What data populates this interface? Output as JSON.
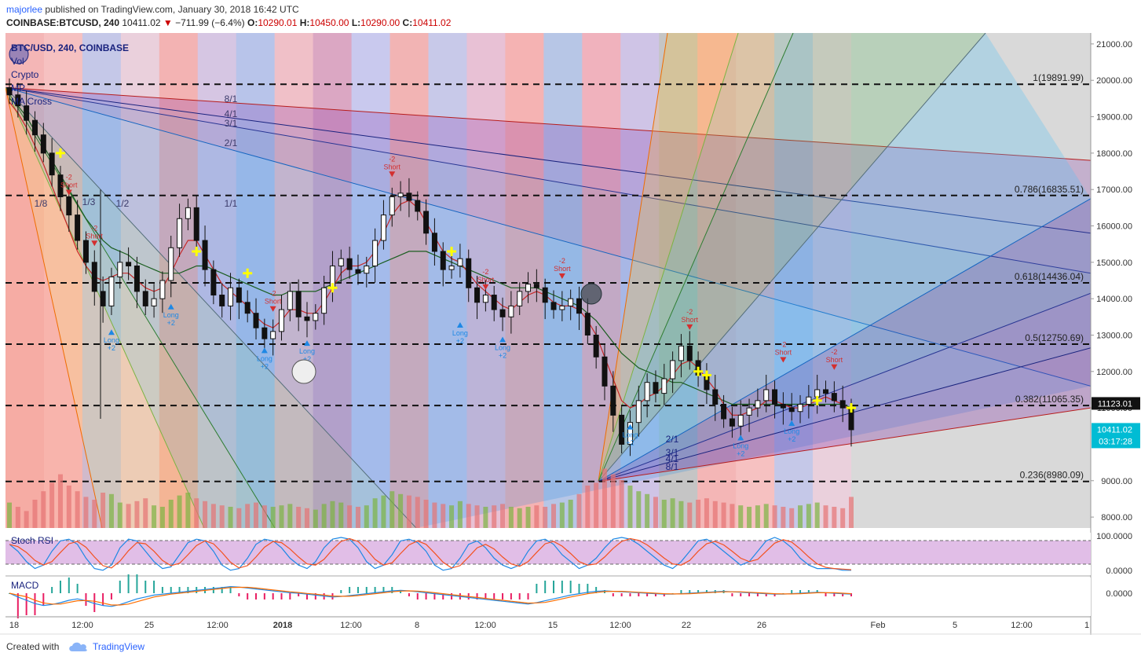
{
  "header": {
    "author": "majorlee",
    "published": "published on TradingView.com, January 30, 2018 16:42 UTC",
    "symbol": "COINBASE:BTCUSD, 240",
    "last": "10411.02",
    "change": "−711.99 (−6.4%)",
    "o_label": "O:",
    "o_value": "10290.01",
    "h_label": "H:",
    "h_value": "10450.00",
    "l_label": "L:",
    "l_value": "10290.00",
    "c_label": "C:",
    "c_value": "10411.02"
  },
  "legend": {
    "title": "BTC/USD, 240, COINBASE",
    "items": [
      "Vol",
      "Crypto",
      "MP",
      "MA Cross"
    ]
  },
  "colors": {
    "bull": "#2e7d32",
    "bear": "#c62828",
    "long_arrow": "#1e88e5",
    "short_arrow": "#d32f2f",
    "cross": "#ffff00",
    "axis_text": "#333333",
    "panel_bg": "#e1bee7"
  },
  "chart_data": {
    "type": "candlestick",
    "xaxis_labels": [
      "18",
      "12:00",
      "25",
      "12:00",
      "2018",
      "12:00",
      "8",
      "12:00",
      "15",
      "12:00",
      "22",
      "26",
      "Feb",
      "5",
      "12:00",
      "1"
    ],
    "yaxis_labels": [
      "21000.00",
      "20000.00",
      "19000.00",
      "18000.00",
      "17000.00",
      "16000.00",
      "15000.00",
      "14000.00",
      "13000.00",
      "12000.00",
      "11000.00",
      "9000.00",
      "8000.00"
    ],
    "ylim": [
      7700,
      21300
    ],
    "price_labels": {
      "last_close": "11123.01",
      "current": "10411.02",
      "countdown": "03:17:28"
    },
    "fib_levels": [
      {
        "label": "1(19891.99)",
        "value": 19891.99
      },
      {
        "label": "0.786(16835.51)",
        "value": 16835.51
      },
      {
        "label": "0.618(14436.04)",
        "value": 14436.04
      },
      {
        "label": "0.5(12750.69)",
        "value": 12750.69
      },
      {
        "label": "0.382(11065.35)",
        "value": 11065.35
      },
      {
        "label": "0.236(8980.09)",
        "value": 8980.09
      }
    ],
    "gann_fan_top_labels": [
      "8/1",
      "4/1",
      "3/1",
      "2/1",
      "1/1",
      "1/2",
      "1/3",
      "1/8"
    ],
    "gann_fan_bottom_labels": [
      "2/1",
      "3/1",
      "4/1",
      "8/1"
    ],
    "signals": {
      "short_label": "Short",
      "short_value": "-2",
      "long_label": "Long",
      "long_value": "+2"
    },
    "close_path": [
      19600,
      19300,
      18900,
      18500,
      18000,
      17400,
      16800,
      16300,
      15600,
      15000,
      14200,
      13800,
      14600,
      15000,
      14900,
      14200,
      13800,
      14000,
      14500,
      15400,
      16200,
      16500,
      15600,
      14800,
      14100,
      13800,
      14300,
      13900,
      13600,
      13200,
      12900,
      13100,
      13700,
      14200,
      13500,
      13400,
      13600,
      14300,
      14900,
      15100,
      14800,
      14700,
      14900,
      15600,
      16300,
      16800,
      16900,
      16700,
      16400,
      15800,
      15300,
      14800,
      14900,
      15100,
      14300,
      13900,
      14100,
      13700,
      13500,
      13800,
      14200,
      14400,
      14300,
      13900,
      13700,
      13800,
      14000,
      13600,
      13000,
      12400,
      11600,
      10800,
      10000,
      10600,
      11200,
      11700,
      11400,
      11800,
      12300,
      12700,
      12300,
      11900,
      11500,
      11100,
      10700,
      10500,
      10800,
      11000,
      11200,
      11500,
      11100,
      11000,
      10900,
      11100,
      11300,
      11500,
      11400,
      11200,
      11000,
      10400
    ],
    "volume_path": [
      180,
      150,
      120,
      200,
      260,
      320,
      380,
      300,
      260,
      220,
      200,
      250,
      240,
      180,
      170,
      190,
      210,
      160,
      150,
      200,
      230,
      250,
      210,
      190,
      170,
      160,
      150,
      140,
      170,
      180,
      160,
      150,
      160,
      170,
      150,
      140,
      130,
      170,
      190,
      180,
      160,
      150,
      160,
      210,
      230,
      260,
      240,
      230,
      220,
      200,
      180,
      170,
      160,
      190,
      170,
      160,
      150,
      160,
      170,
      150,
      140,
      150,
      160,
      150,
      170,
      180,
      200,
      240,
      300,
      320,
      420,
      380,
      340,
      300,
      260,
      240,
      220,
      200,
      210,
      190,
      180,
      200,
      210,
      190,
      180,
      170,
      160,
      150,
      160,
      170,
      160,
      150,
      140,
      160,
      170,
      180,
      160,
      150,
      140,
      220
    ],
    "stoch_rsi_k": [
      80,
      60,
      30,
      10,
      20,
      60,
      90,
      95,
      80,
      40,
      10,
      5,
      20,
      70,
      95,
      90,
      60,
      30,
      10,
      15,
      50,
      85,
      95,
      90,
      60,
      20,
      5,
      10,
      40,
      80,
      95,
      90,
      70,
      40,
      20,
      10,
      30,
      70,
      95,
      100,
      95,
      70,
      30,
      10,
      20,
      50,
      90,
      95,
      85,
      60,
      20,
      5,
      10,
      40,
      80,
      90,
      70,
      40,
      20,
      10,
      20,
      60,
      90,
      95,
      80,
      50,
      30,
      10,
      20,
      40,
      70,
      95,
      100,
      95,
      80,
      60,
      40,
      20,
      10,
      30,
      60,
      90,
      95,
      80,
      60,
      40,
      20,
      30,
      60,
      90,
      100,
      90,
      70,
      40,
      20,
      10,
      10,
      10,
      5,
      5
    ],
    "macd_line": [
      0,
      -80,
      -150,
      -220,
      -260,
      -240,
      -200,
      -150,
      -120,
      -160,
      -220,
      -260,
      -280,
      -240,
      -180,
      -120,
      -80,
      -40,
      -20,
      0,
      20,
      40,
      60,
      80,
      100,
      120,
      140,
      130,
      110,
      90,
      70,
      50,
      30,
      10,
      0,
      -20,
      -40,
      -60,
      -80,
      -70,
      -50,
      -30,
      -10,
      10,
      30,
      50,
      60,
      50,
      30,
      10,
      -10,
      -30,
      -50,
      -70,
      -90,
      -110,
      -130,
      -150,
      -170,
      -190,
      -210,
      -230,
      -200,
      -160,
      -120,
      -80,
      -40,
      -10,
      20,
      40,
      50,
      40,
      30,
      20,
      10,
      0,
      -10,
      -20,
      -20,
      -10,
      0,
      10,
      20,
      30,
      40,
      30,
      20,
      10,
      0,
      -10,
      -20,
      -20,
      -10,
      0,
      10,
      20,
      10,
      0,
      -10,
      -20
    ],
    "ma_fast": [
      19400,
      19100,
      18700,
      18200,
      17700,
      17100,
      16500,
      15900,
      15300,
      14900,
      14600,
      14500,
      14600,
      14700,
      14700,
      14500,
      14300,
      14200,
      14300,
      14700,
      15200,
      15600,
      15600,
      15200,
      14800,
      14400,
      14200,
      14000,
      13800,
      13500,
      13300,
      13200,
      13400,
      13700,
      13700,
      13600,
      13600,
      13900,
      14300,
      14700,
      14900,
      14900,
      15000,
      15300,
      15800,
      16300,
      16600,
      16700,
      16500,
      16100,
      15700,
      15300,
      15100,
      15000,
      14700,
      14400,
      14200,
      14000,
      13800,
      13700,
      13900,
      14100,
      14200,
      14100,
      13900,
      13800,
      13800,
      13700,
      13400,
      13000,
      12400,
      11800,
      11200,
      11000,
      11100,
      11300,
      11400,
      11600,
      11900,
      12200,
      12300,
      12100,
      11800,
      11500,
      11100,
      10800,
      10800,
      10900,
      11000,
      11200,
      11200,
      11100,
      11000,
      11000,
      11100,
      11200,
      11300,
      11200,
      11100,
      10900
    ],
    "ma_slow": [
      19500,
      19300,
      19000,
      18600,
      18200,
      17800,
      17400,
      17000,
      16600,
      16200,
      15900,
      15600,
      15400,
      15300,
      15200,
      15000,
      14900,
      14800,
      14700,
      14700,
      14700,
      14800,
      14900,
      14900,
      14800,
      14700,
      14600,
      14500,
      14400,
      14300,
      14200,
      14100,
      14100,
      14200,
      14200,
      14200,
      14200,
      14300,
      14400,
      14500,
      14600,
      14700,
      14800,
      14900,
      15000,
      15100,
      15200,
      15300,
      15300,
      15300,
      15200,
      15100,
      15000,
      14900,
      14800,
      14700,
      14600,
      14500,
      14400,
      14300,
      14300,
      14300,
      14300,
      14200,
      14100,
      14000,
      13900,
      13800,
      13600,
      13400,
      13100,
      12800,
      12500,
      12300,
      12100,
      12000,
      11900,
      11800,
      11700,
      11700,
      11600,
      11500,
      11400,
      11300,
      11200,
      11100,
      11100,
      11100,
      11100,
      11100,
      11100,
      11100,
      11100,
      11100,
      11100,
      11100,
      11100,
      11100,
      11100,
      11000
    ]
  },
  "panels": {
    "stoch_title": "Stoch RSI",
    "stoch_axis": [
      "100.0000",
      "0.0000"
    ],
    "macd_title": "MACD",
    "macd_axis": [
      "0.0000"
    ]
  },
  "footer": {
    "created": "Created with",
    "brand": "TradingView"
  }
}
